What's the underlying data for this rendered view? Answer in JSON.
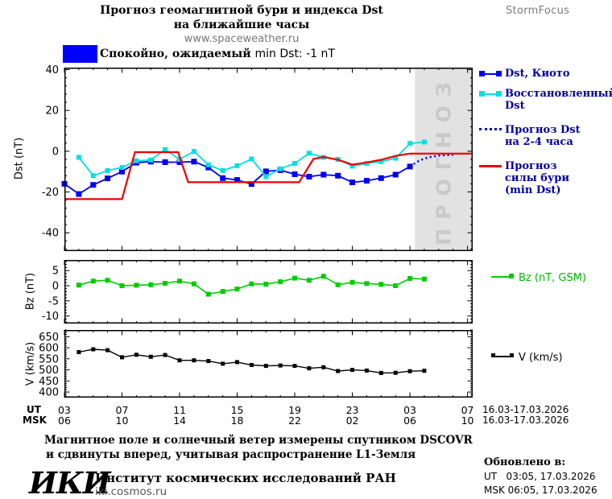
{
  "header": {
    "title_line1": "Прогноз геомагнитной бури и индекса Dst",
    "title_line2": "на ближайшие часы",
    "title_line3": "www.spaceweather.ru",
    "brand": "StormFocus"
  },
  "status": {
    "swatch_color": "#0000ff",
    "text_main": "Спокойно, ожидаемый",
    "text_value": "min Dst: -1 nT"
  },
  "legend_dst": {
    "items": [
      {
        "style": "line-squares",
        "color": "#0000ee",
        "lines": [
          "Dst, Киото"
        ]
      },
      {
        "style": "line-squares",
        "color": "#00e0e0",
        "lines": [
          "Восстановленный",
          "Dst"
        ]
      },
      {
        "style": "dotted",
        "color": "#0000cc",
        "lines": [
          "Прогноз Dst",
          "на 2-4 часа"
        ]
      },
      {
        "style": "solid",
        "color": "#ee0000",
        "lines": [
          "Прогноз",
          "силы бури",
          "(min Dst)"
        ]
      }
    ]
  },
  "legend_bz": {
    "label": "Bz (nT, GSM)",
    "color": "#00cc00"
  },
  "legend_v": {
    "label": "V (km/s)",
    "color": "#000000"
  },
  "xaxis": {
    "ut_label": "UT",
    "msk_label": "MSK",
    "ticks_t": [
      3,
      7,
      11,
      15,
      19,
      23,
      27,
      31
    ],
    "ut": [
      "03",
      "07",
      "11",
      "15",
      "19",
      "23",
      "03",
      "07"
    ],
    "msk": [
      "06",
      "10",
      "14",
      "18",
      "22",
      "02",
      "06",
      "10"
    ],
    "ut_date": "16.03-17.03.2026",
    "msk_date": "16.03-17.03.2026"
  },
  "footer": {
    "note_line1": "Магнитное поле и солнечный ветер измерены спутником DSCOVR",
    "note_line2": "и сдвинуты вперед, учитывая распространение L1-Земля",
    "logo": "ИКИ",
    "institute": "Институт космических исследований РАН",
    "site": "iki.cosmos.ru",
    "updated_label": "Обновлено в:",
    "updated_ut": "UT   03:05, 17.03.2026",
    "updated_msk": "MSK 06:05, 17.03.2026"
  },
  "chart_data": [
    {
      "type": "line",
      "name": "dst",
      "ylabel": "Dst (nT)",
      "xlim": [
        3,
        31.36
      ],
      "ylim": [
        -49,
        41
      ],
      "yticks": [
        40,
        20,
        0,
        -20,
        -40
      ],
      "yminor": 4,
      "xticks": [
        3,
        7,
        11,
        15,
        19,
        23,
        27,
        31
      ],
      "xminor": 1,
      "grid": false,
      "band": {
        "from": 27.35,
        "label": "ПРОГНОЗ",
        "color": "#e2e2e2",
        "label_color": "#c9c9c9"
      },
      "series": [
        {
          "name": "Dst, Киото",
          "color": "#0000ee",
          "width": 1.8,
          "marker": 7,
          "x": [
            3,
            4,
            5,
            6,
            7,
            8,
            9,
            10,
            11,
            12,
            13,
            14,
            15,
            16,
            17,
            18,
            19,
            20,
            21,
            22,
            23,
            24,
            25,
            26,
            27
          ],
          "y": [
            -16,
            -21,
            -16.5,
            -13.3,
            -10,
            -5.6,
            -5.1,
            -5.4,
            -5.4,
            -5.1,
            -8,
            -13.2,
            -14.1,
            -16.1,
            -9.9,
            -9.3,
            -11.3,
            -12.5,
            -11.5,
            -12,
            -15.3,
            -14.5,
            -13.2,
            -11.5,
            -7.5
          ]
        },
        {
          "name": "Восстановленный Dst",
          "color": "#00e0e0",
          "width": 1.8,
          "marker": 6,
          "x": [
            4,
            5,
            6,
            7,
            8,
            9,
            10,
            11,
            12,
            13,
            14,
            15,
            16,
            17,
            18,
            19,
            20,
            21,
            22,
            23,
            24,
            25,
            26,
            27,
            28
          ],
          "y": [
            -3,
            -12,
            -9.5,
            -8,
            -4.7,
            -4.3,
            0.8,
            -4,
            -0.1,
            -6.7,
            -9.5,
            -7.1,
            -3.8,
            -12.5,
            -8.6,
            -6,
            -1,
            -3,
            -4,
            -7.3,
            -6,
            -5.1,
            -3.4,
            3.8,
            4.5
          ]
        },
        {
          "name": "Прогноз Dst на 2-4 часа",
          "color": "#0000cc",
          "width": 2.5,
          "dash": "2 3.5",
          "marker": 0,
          "x": [
            27,
            27.5,
            28,
            28.5,
            29,
            29.5,
            30
          ],
          "y": [
            -7.5,
            -5.2,
            -3.6,
            -2.7,
            -2.2,
            -1.9,
            -1.8
          ]
        },
        {
          "name": "Прогноз силы бури (min Dst)",
          "color": "#ee0000",
          "width": 2.2,
          "marker": 0,
          "x": [
            3,
            7,
            7.9,
            10.9,
            11.6,
            19.3,
            20.3,
            21,
            22,
            23,
            24,
            25,
            26,
            27,
            31.36
          ],
          "y": [
            -23.5,
            -23.5,
            -0.5,
            -0.5,
            -15.2,
            -15.2,
            -3.8,
            -2.8,
            -4.2,
            -6.6,
            -5.5,
            -4.2,
            -2.3,
            -1.2,
            -1.2
          ]
        }
      ]
    },
    {
      "type": "line",
      "name": "bz",
      "ylabel": "Bz (nT)",
      "xlim": [
        3,
        31.36
      ],
      "ylim": [
        -12.5,
        8.5
      ],
      "yticks": [
        5,
        0,
        -5,
        -10
      ],
      "yminor": 1,
      "xticks": [
        3,
        7,
        11,
        15,
        19,
        23,
        27,
        31
      ],
      "xminor": 1,
      "grid": false,
      "series": [
        {
          "name": "Bz (nT, GSM)",
          "color": "#00cc00",
          "width": 1.6,
          "marker": 6,
          "x": [
            4,
            5,
            6,
            7,
            8,
            9,
            10,
            11,
            12,
            13,
            14,
            15,
            16,
            17,
            18,
            19,
            20,
            21,
            22,
            23,
            24,
            25,
            26,
            27,
            28
          ],
          "y": [
            0.2,
            1.5,
            1.8,
            0.0,
            0.15,
            0.3,
            0.8,
            1.5,
            0.6,
            -2.8,
            -1.9,
            -1.1,
            0.6,
            0.5,
            1.3,
            2.5,
            1.8,
            3.1,
            0.3,
            1.1,
            0.7,
            0.45,
            0.0,
            2.4,
            2.2
          ]
        }
      ]
    },
    {
      "type": "line",
      "name": "v",
      "ylabel": "V (km/s)",
      "xlim": [
        3,
        31.36
      ],
      "ylim": [
        375,
        680
      ],
      "yticks": [
        650,
        600,
        550,
        500,
        450,
        400
      ],
      "yminor": 10,
      "xticks": [
        3,
        7,
        11,
        15,
        19,
        23,
        27,
        31
      ],
      "xminor": 1,
      "grid": false,
      "series": [
        {
          "name": "V (km/s)",
          "color": "#000000",
          "width": 1.4,
          "marker": 5,
          "x": [
            4,
            5,
            6,
            7,
            8,
            9,
            10,
            11,
            12,
            13,
            14,
            15,
            16,
            17,
            18,
            19,
            20,
            21,
            22,
            23,
            24,
            25,
            26,
            27,
            28
          ],
          "y": [
            580,
            593,
            589,
            557,
            568,
            559,
            567,
            543,
            543,
            540,
            528,
            535,
            522,
            518,
            520,
            518,
            507,
            512,
            495,
            500,
            497,
            486,
            487,
            494,
            496
          ]
        }
      ]
    }
  ]
}
